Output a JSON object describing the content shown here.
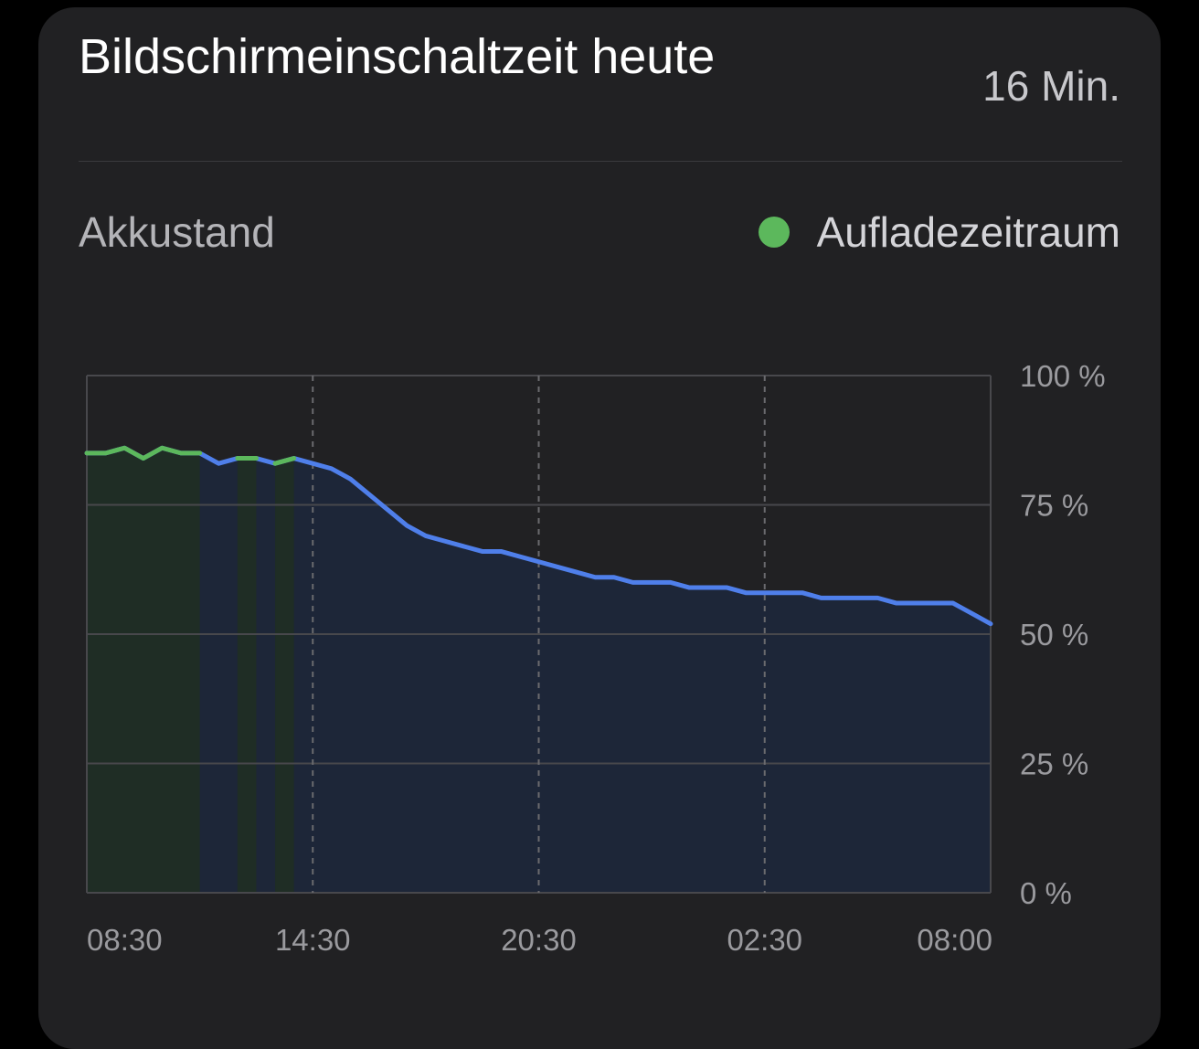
{
  "card": {
    "title": "Bildschirmeinschaltzeit heute",
    "screen_time": "16 Min."
  },
  "section": {
    "label": "Akkustand"
  },
  "legend": {
    "label": "Aufladezeitraum",
    "color": "#5cb85c"
  },
  "colors": {
    "background": "#000000",
    "card": "#212123",
    "line_discharge": "#4f7fea",
    "line_charge": "#5cb85c",
    "fill_discharge": "#1d2638",
    "fill_charge": "#1f2d25",
    "grid": "#48484c"
  },
  "chart_data": {
    "type": "area",
    "title": "",
    "xlabel": "",
    "ylabel": "",
    "ylim": [
      0,
      100
    ],
    "yticks": [
      "100 %",
      "75 %",
      "50 %",
      "25 %",
      "0 %"
    ],
    "ytick_values": [
      100,
      75,
      50,
      25,
      0
    ],
    "xticks": [
      "08:30",
      "14:30",
      "20:30",
      "02:30",
      "08:00"
    ],
    "xtick_hours": [
      0,
      6,
      12,
      18,
      23.5
    ],
    "x_start": "08:30",
    "grid": true,
    "series": [
      {
        "x": [
          0,
          0.5,
          1,
          1.5,
          2,
          2.5,
          3,
          3.5,
          4,
          4.5,
          5,
          5.5,
          6,
          6.5,
          7,
          7.5,
          8,
          8.5,
          9,
          9.5,
          10,
          10.5,
          11,
          11.5,
          12,
          12.5,
          13,
          13.5,
          14,
          14.5,
          15,
          15.5,
          16,
          16.5,
          17,
          17.5,
          18,
          18.5,
          19,
          19.5,
          20,
          20.5,
          21,
          21.5,
          22,
          22.5,
          23,
          23.5,
          24
        ],
        "y": [
          85,
          85,
          86,
          84,
          86,
          85,
          85,
          83,
          84,
          84,
          83,
          84,
          83,
          82,
          80,
          77,
          74,
          71,
          69,
          68,
          67,
          66,
          66,
          65,
          64,
          63,
          62,
          61,
          61,
          60,
          60,
          60,
          59,
          59,
          59,
          58,
          58,
          58,
          58,
          57,
          57,
          57,
          57,
          56,
          56,
          56,
          56,
          54,
          52
        ]
      }
    ],
    "charging_periods": [
      [
        0,
        3
      ],
      [
        4,
        4.5
      ],
      [
        5,
        5.5
      ]
    ]
  }
}
